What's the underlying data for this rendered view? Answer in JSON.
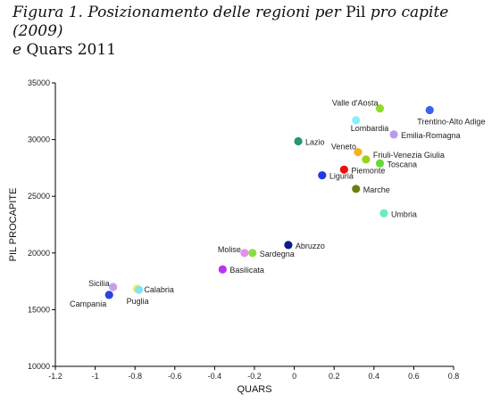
{
  "caption": {
    "part1": "Figura 1. Posizionamento delle regioni per ",
    "part2": "Pil",
    "part3": " pro capite (2009)",
    "part4": "e ",
    "part5": "Quars 2011"
  },
  "chart_data": {
    "type": "scatter",
    "title": "",
    "xlabel": "QUARS",
    "ylabel": "PIL PROCAPITE",
    "xlim": [
      -1.2,
      0.8
    ],
    "ylim": [
      10000,
      35000
    ],
    "xticks": [
      -1.2,
      -1,
      -0.8,
      -0.6,
      -0.4,
      -0.2,
      0,
      0.2,
      0.4,
      0.6,
      0.8
    ],
    "xtick_labels": [
      "-1.2",
      "-1",
      "-0.8",
      "-0.6",
      "-0.4",
      "-0.2",
      "0",
      "0.2",
      "0.4",
      "0.6",
      "0.8"
    ],
    "yticks": [
      10000,
      15000,
      20000,
      25000,
      30000,
      35000
    ],
    "ytick_labels": [
      "10000",
      "15000",
      "20000",
      "25000",
      "30000",
      "35000"
    ],
    "grid": false,
    "points": [
      {
        "name": "Valle d'Aosta",
        "x": 0.43,
        "y": 32750,
        "color": "#8fdc2a",
        "label_pos": "above-left"
      },
      {
        "name": "Trentino-Alto Adige",
        "x": 0.68,
        "y": 32600,
        "color": "#3366ee",
        "label_pos": "below"
      },
      {
        "name": "Lombardia",
        "x": 0.31,
        "y": 31700,
        "color": "#88eeff",
        "label_pos": "right-below"
      },
      {
        "name": "Emilia-Romagna",
        "x": 0.5,
        "y": 30450,
        "color": "#bb99ee",
        "label_pos": "right"
      },
      {
        "name": "Lazio",
        "x": 0.02,
        "y": 29850,
        "color": "#1f9a6a",
        "label_pos": "right"
      },
      {
        "name": "Veneto",
        "x": 0.32,
        "y": 28900,
        "color": "#f6b21e",
        "label_pos": "above-left"
      },
      {
        "name": "Friuli-Venezia Giulia",
        "x": 0.36,
        "y": 28250,
        "color": "#9ad21a",
        "label_pos": "right-above"
      },
      {
        "name": "Toscana",
        "x": 0.43,
        "y": 27900,
        "color": "#66d93a",
        "label_pos": "right"
      },
      {
        "name": "Piemonte",
        "x": 0.25,
        "y": 27350,
        "color": "#ee1111",
        "label_pos": "right"
      },
      {
        "name": "Liguria",
        "x": 0.14,
        "y": 26850,
        "color": "#1a3ce0",
        "label_pos": "right"
      },
      {
        "name": "Marche",
        "x": 0.31,
        "y": 25650,
        "color": "#6b7f10",
        "label_pos": "right"
      },
      {
        "name": "Umbria",
        "x": 0.45,
        "y": 23500,
        "color": "#66efbb",
        "label_pos": "right"
      },
      {
        "name": "Abruzzo",
        "x": -0.03,
        "y": 20700,
        "color": "#0a1b8a",
        "label_pos": "right"
      },
      {
        "name": "Molise",
        "x": -0.25,
        "y": 20000,
        "color": "#e48ef0",
        "label_pos": "left"
      },
      {
        "name": "Sardegna",
        "x": -0.21,
        "y": 20000,
        "color": "#8bdc44",
        "label_pos": "right"
      },
      {
        "name": "Basilicata",
        "x": -0.36,
        "y": 18550,
        "color": "#bb33ee",
        "label_pos": "right"
      },
      {
        "name": "Sicilia",
        "x": -0.91,
        "y": 17000,
        "color": "#c8a0ea",
        "label_pos": "left"
      },
      {
        "name": "Calabria",
        "x": -0.79,
        "y": 16850,
        "color": "#f0ee55",
        "label_pos": "right"
      },
      {
        "name": "Puglia",
        "x": -0.78,
        "y": 16750,
        "color": "#88e2ee",
        "label_pos": "below"
      },
      {
        "name": "Campania",
        "x": -0.93,
        "y": 16300,
        "color": "#2a44dd",
        "label_pos": "left-below"
      }
    ]
  }
}
